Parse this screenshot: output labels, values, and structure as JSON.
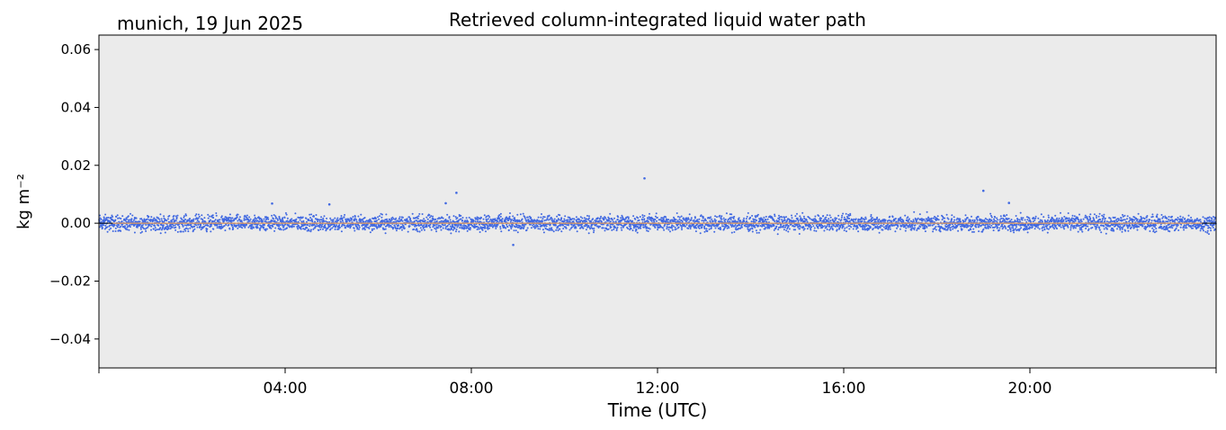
{
  "chart_data": {
    "type": "scatter",
    "title": "Retrieved column-integrated liquid water path",
    "subtitle": "munich, 19 Jun 2025",
    "xlabel": "Time (UTC)",
    "ylabel": "kg m⁻²",
    "xlim_hours": [
      0,
      24
    ],
    "ylim": [
      -0.05,
      0.065
    ],
    "x_ticks": [
      {
        "hours": 0,
        "label": ""
      },
      {
        "hours": 4,
        "label": "04:00"
      },
      {
        "hours": 8,
        "label": "08:00"
      },
      {
        "hours": 12,
        "label": "12:00"
      },
      {
        "hours": 16,
        "label": "16:00"
      },
      {
        "hours": 20,
        "label": "20:00"
      },
      {
        "hours": 24,
        "label": ""
      }
    ],
    "y_ticks": [
      {
        "value": -0.04,
        "label": "−0.04"
      },
      {
        "value": -0.02,
        "label": "−0.02"
      },
      {
        "value": 0.0,
        "label": "0.00"
      },
      {
        "value": 0.02,
        "label": "0.02"
      },
      {
        "value": 0.04,
        "label": "0.04"
      },
      {
        "value": 0.06,
        "label": "0.06"
      }
    ],
    "grid": false,
    "background_color": "#ebebeb",
    "zero_line": {
      "value": 0.0,
      "color": "#000000"
    },
    "series": [
      {
        "marker_color": "#4169e1",
        "time_range_hours": [
          0,
          24
        ],
        "band": [
          -0.004,
          0.004
        ],
        "outliers": [
          {
            "hours": 3.72,
            "value": 0.0068
          },
          {
            "hours": 7.68,
            "value": 0.0105
          },
          {
            "hours": 7.45,
            "value": 0.0069
          },
          {
            "hours": 8.9,
            "value": -0.0075
          },
          {
            "hours": 11.72,
            "value": 0.0155
          },
          {
            "hours": 19.0,
            "value": 0.0112
          },
          {
            "hours": 19.55,
            "value": 0.007
          },
          {
            "hours": 4.95,
            "value": 0.0065
          }
        ]
      },
      {
        "line_color": "#e8a36a",
        "time_range_hours": [
          0.3,
          23.7
        ],
        "value": 0.0
      }
    ]
  }
}
